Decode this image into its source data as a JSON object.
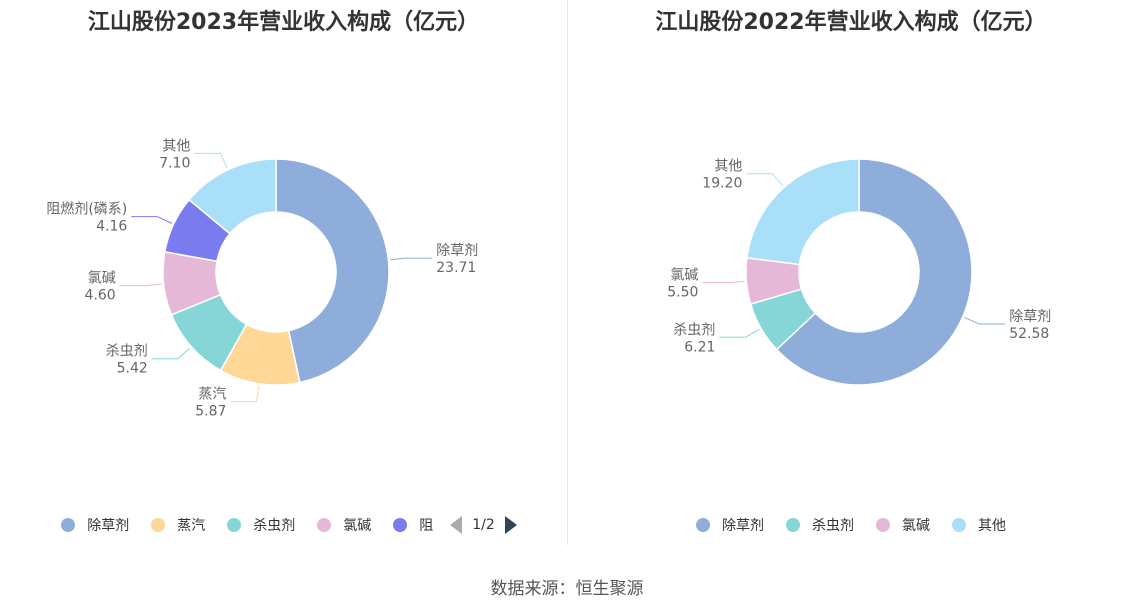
{
  "charts": {
    "left": {
      "title": "江山股份2023年营业收入构成（亿元）"
    },
    "right": {
      "title": "江山股份2022年营业收入构成（亿元）"
    }
  },
  "chart_data": [
    {
      "type": "pie",
      "title": "江山股份2023年营业收入构成（亿元）",
      "unit": "亿元",
      "slices": [
        {
          "name": "除草剂",
          "value": 23.71,
          "color": "#8eaddb"
        },
        {
          "name": "蒸汽",
          "value": 5.87,
          "color": "#ffd797"
        },
        {
          "name": "杀虫剂",
          "value": 5.42,
          "color": "#86d6d8"
        },
        {
          "name": "氯碱",
          "value": 4.6,
          "color": "#e5b8d8"
        },
        {
          "name": "阻燃剂(磷系)",
          "value": 4.16,
          "color": "#7b7bf0"
        },
        {
          "name": "其他",
          "value": 7.1,
          "color": "#a9dff8"
        }
      ],
      "legend": {
        "position": "bottom",
        "visible_items": [
          "除草剂",
          "蒸汽",
          "杀虫剂",
          "氯碱",
          "阻"
        ],
        "page": "1/2"
      }
    },
    {
      "type": "pie",
      "title": "江山股份2022年营业收入构成（亿元）",
      "unit": "亿元",
      "slices": [
        {
          "name": "除草剂",
          "value": 52.58,
          "color": "#8eaddb"
        },
        {
          "name": "杀虫剂",
          "value": 6.21,
          "color": "#86d6d8"
        },
        {
          "name": "氯碱",
          "value": 5.5,
          "color": "#e5b8d8"
        },
        {
          "name": "其他",
          "value": 19.2,
          "color": "#a9dff8"
        }
      ],
      "legend": {
        "position": "bottom",
        "visible_items": [
          "除草剂",
          "杀虫剂",
          "氯碱",
          "其他"
        ]
      }
    }
  ],
  "source": "数据来源：恒生聚源"
}
